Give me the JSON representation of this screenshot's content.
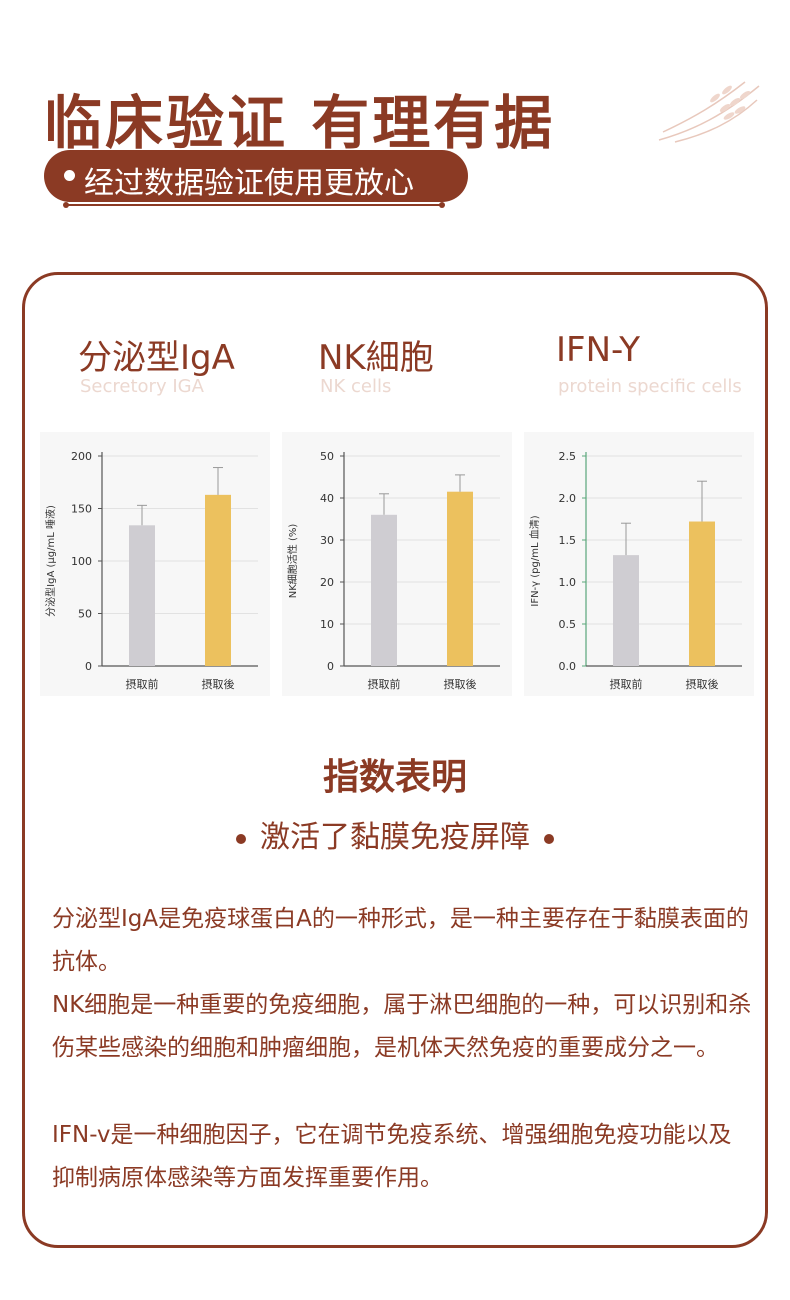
{
  "header": {
    "title": "临床验证 有理有据",
    "tagline": "经过数据验证使用更放心"
  },
  "panels": [
    {
      "title": "分泌型IgA",
      "subtitle": "Secretory IGA"
    },
    {
      "title": "NK細胞",
      "subtitle": "NK cells"
    },
    {
      "title": "IFN-Y",
      "subtitle": "protein specific cells"
    }
  ],
  "chart_data": [
    {
      "type": "bar",
      "categories": [
        "摂取前",
        "摂取後"
      ],
      "values": [
        134,
        163
      ],
      "errors": [
        19,
        26
      ],
      "ylabel": "分泌型IgA (μg/mL 唾液)",
      "ylim": [
        0,
        200
      ],
      "yticks": [
        "0",
        "50",
        "100",
        "150",
        "200"
      ],
      "colors": [
        "#cfcdd2",
        "#ecc15e"
      ]
    },
    {
      "type": "bar",
      "categories": [
        "摂取前",
        "摂取後"
      ],
      "values": [
        36,
        41.5
      ],
      "errors": [
        5,
        4
      ],
      "ylabel": "NK細胞活性 (%)",
      "ylim": [
        0,
        50
      ],
      "yticks": [
        "0",
        "10",
        "20",
        "30",
        "40",
        "50"
      ],
      "colors": [
        "#cfcdd2",
        "#ecc15e"
      ]
    },
    {
      "type": "bar",
      "categories": [
        "摂取前",
        "摂取後"
      ],
      "values": [
        1.32,
        1.72
      ],
      "errors": [
        0.38,
        0.48
      ],
      "ylabel": "IFN-γ (pg/mL 血清)",
      "ylim": [
        0,
        2.5
      ],
      "yticks": [
        "0.0",
        "0.5",
        "1.0",
        "1.5",
        "2.0",
        "2.5"
      ],
      "colors": [
        "#cfcdd2",
        "#ecc15e"
      ],
      "axis_color": "#5aa77a"
    }
  ],
  "summary": {
    "title": "指数表明",
    "subtitle": "激活了黏膜免疫屏障"
  },
  "paragraphs": [
    "分泌型IgA是免疫球蛋白A的一种形式，是一种主要存在于黏膜表面的抗体。",
    "NK细胞是一种重要的免疫细胞，属于淋巴细胞的一种，可以识别和杀伤某些感染的细胞和肿瘤细胞，是机体天然免疫的重要成分之一。",
    "IFN-v是一种细胞因子，它在调节免疫系统、增强细胞免疫功能以及抑制病原体感染等方面发挥重要作用。"
  ]
}
